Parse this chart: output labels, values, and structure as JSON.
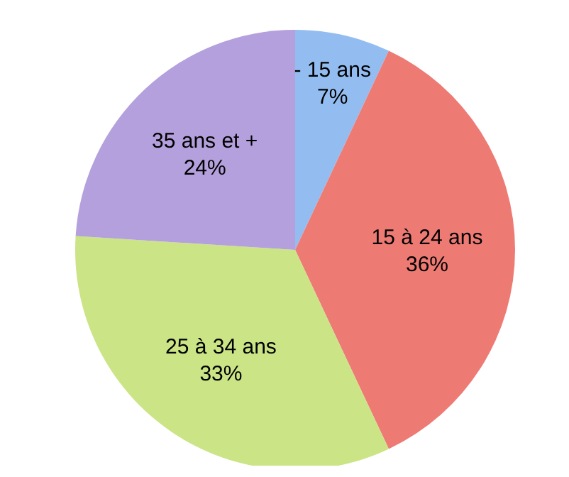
{
  "chart_data": {
    "type": "pie",
    "categories": [
      "- 15 ans",
      "15 à 24 ans",
      "25 à 34 ans",
      "35 ans et +"
    ],
    "values": [
      7,
      36,
      33,
      24
    ],
    "value_labels": [
      "7%",
      "36%",
      "33%",
      "24%"
    ],
    "colors": [
      "#93bdf0",
      "#ee7a74",
      "#cbe486",
      "#b3a0dc"
    ]
  }
}
